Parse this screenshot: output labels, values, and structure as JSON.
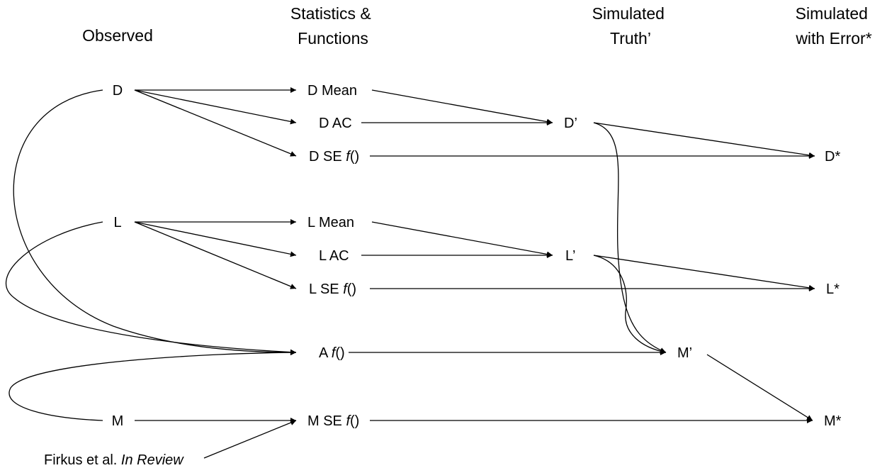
{
  "headers": {
    "observed": [
      "Observed"
    ],
    "stats": [
      "Statistics &",
      "Functions"
    ],
    "truth": [
      "Simulated",
      "Truth’"
    ],
    "error": [
      "Simulated",
      "with Error*"
    ]
  },
  "nodes": {
    "D": {
      "pre": "D",
      "it": "",
      "post": ""
    },
    "L": {
      "pre": "L",
      "it": "",
      "post": ""
    },
    "M": {
      "pre": "M",
      "it": "",
      "post": ""
    },
    "DMean": {
      "pre": "D Mean",
      "it": "",
      "post": ""
    },
    "DAC": {
      "pre": "D AC",
      "it": "",
      "post": ""
    },
    "DSE": {
      "pre": "D SE ",
      "it": "f",
      "post": "()"
    },
    "LMean": {
      "pre": "L Mean",
      "it": "",
      "post": ""
    },
    "LAC": {
      "pre": "L AC",
      "it": "",
      "post": ""
    },
    "LSE": {
      "pre": "L SE ",
      "it": "f",
      "post": "()"
    },
    "Af": {
      "pre": "A ",
      "it": "f",
      "post": "()"
    },
    "MSE": {
      "pre": "M SE ",
      "it": "f",
      "post": "()"
    },
    "Dp": {
      "pre": "D’",
      "it": "",
      "post": ""
    },
    "Lp": {
      "pre": "L’",
      "it": "",
      "post": ""
    },
    "Mp": {
      "pre": "M’",
      "it": "",
      "post": ""
    },
    "Ds": {
      "pre": "D*",
      "it": "",
      "post": ""
    },
    "Ls": {
      "pre": "L*",
      "it": "",
      "post": ""
    },
    "Ms": {
      "pre": "M*",
      "it": "",
      "post": ""
    },
    "ref": {
      "pre": "Firkus et al. ",
      "it": "In Review",
      "post": ""
    }
  },
  "edges": [
    {
      "from": "D",
      "to": "DMean"
    },
    {
      "from": "D",
      "to": "DAC"
    },
    {
      "from": "D",
      "to": "DSE"
    },
    {
      "from": "L",
      "to": "LMean"
    },
    {
      "from": "L",
      "to": "LAC"
    },
    {
      "from": "L",
      "to": "LSE"
    },
    {
      "from": "D",
      "to": "Af"
    },
    {
      "from": "L",
      "to": "Af"
    },
    {
      "from": "M",
      "to": "MSE"
    },
    {
      "from": "M",
      "to": "Af"
    },
    {
      "from": "ref",
      "to": "MSE"
    },
    {
      "from": "DMean",
      "to": "Dp"
    },
    {
      "from": "DAC",
      "to": "Dp"
    },
    {
      "from": "LMean",
      "to": "Lp"
    },
    {
      "from": "LAC",
      "to": "Lp"
    },
    {
      "from": "Af",
      "to": "Mp"
    },
    {
      "from": "Dp",
      "to": "Mp"
    },
    {
      "from": "Lp",
      "to": "Mp"
    },
    {
      "from": "Dp",
      "to": "Ds"
    },
    {
      "from": "DSE",
      "to": "Ds"
    },
    {
      "from": "Lp",
      "to": "Ls"
    },
    {
      "from": "LSE",
      "to": "Ls"
    },
    {
      "from": "Mp",
      "to": "Ms"
    },
    {
      "from": "MSE",
      "to": "Ms"
    }
  ]
}
